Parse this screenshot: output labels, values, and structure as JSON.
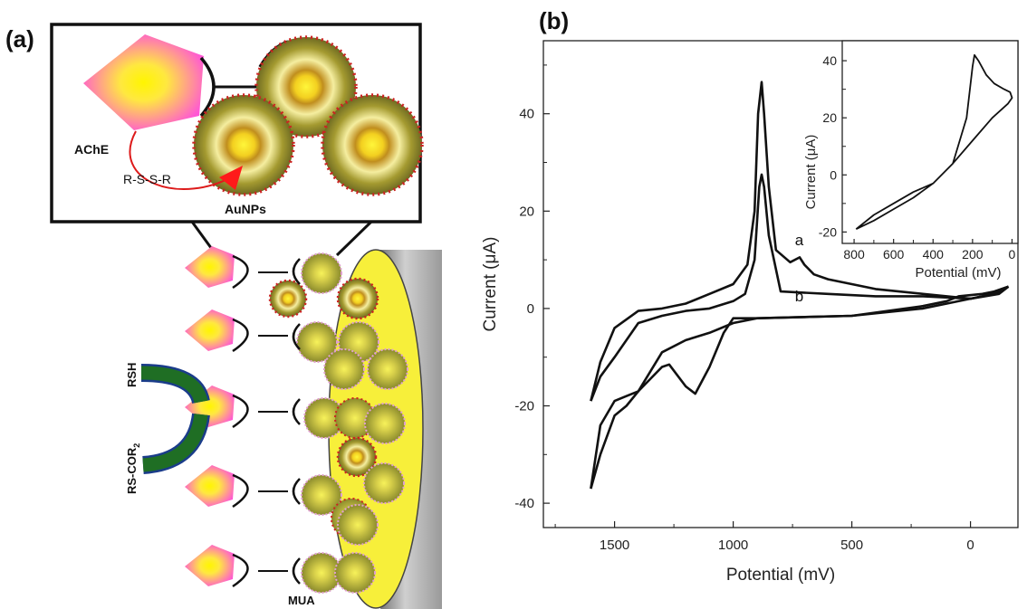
{
  "panels": {
    "a": "(a)",
    "b": "(b)"
  },
  "diagram": {
    "ache": "AChE",
    "rssr": "R-S-S-R",
    "aunps": "AuNPs",
    "rsh": "RSH",
    "rscor_main": "RS-COR",
    "rscor_sub": "2",
    "mua": "MUA"
  },
  "colors": {
    "enzyme": "#ff55d6",
    "core": "#fff200",
    "particle": "#b8ad3a",
    "dots": "#cc2222",
    "arrow": "#ff1a1a",
    "tube": "#1f6e24",
    "electrode": "#f7ef3a"
  },
  "chart_data": [
    {
      "type": "line",
      "title": "",
      "xlabel": "Potential  (mV)",
      "ylabel": "Current  (μA)",
      "xlim": [
        1800,
        -200
      ],
      "ylim": [
        -45,
        55
      ],
      "xticks": [
        1500,
        1000,
        500,
        0
      ],
      "yticks": [
        40,
        20,
        0,
        -20,
        -40
      ],
      "curve_labels": [
        "a",
        "b"
      ],
      "series": [
        {
          "name": "a",
          "forward": [
            [
              1600,
              -37
            ],
            [
              1560,
              -24
            ],
            [
              1500,
              -19
            ],
            [
              1450,
              -18
            ],
            [
              1400,
              -17
            ],
            [
              1300,
              -12
            ],
            [
              1270,
              -11.5
            ],
            [
              1200,
              -16
            ],
            [
              1160,
              -17.5
            ],
            [
              1100,
              -12
            ],
            [
              1040,
              -5
            ],
            [
              1000,
              -2
            ],
            [
              900,
              -2
            ],
            [
              500,
              -1.5
            ],
            [
              200,
              0.5
            ],
            [
              100,
              1.5
            ],
            [
              50,
              2.5
            ],
            [
              -50,
              3
            ],
            [
              -100,
              3.5
            ],
            [
              -160,
              4.5
            ]
          ],
          "reverse": [
            [
              -160,
              4.5
            ],
            [
              -120,
              3
            ],
            [
              0,
              2
            ],
            [
              200,
              3
            ],
            [
              400,
              4
            ],
            [
              500,
              5
            ],
            [
              600,
              6
            ],
            [
              660,
              7
            ],
            [
              700,
              9
            ],
            [
              720,
              10.5
            ],
            [
              760,
              9.5
            ],
            [
              820,
              12
            ],
            [
              850,
              25
            ],
            [
              870,
              40
            ],
            [
              880,
              46.5
            ],
            [
              895,
              40
            ],
            [
              910,
              20
            ],
            [
              940,
              9
            ],
            [
              1000,
              5
            ],
            [
              1100,
              3
            ],
            [
              1200,
              1
            ],
            [
              1300,
              0
            ],
            [
              1400,
              -0.5
            ],
            [
              1500,
              -4
            ],
            [
              1560,
              -11
            ],
            [
              1600,
              -19
            ]
          ]
        },
        {
          "name": "b",
          "forward": [
            [
              1600,
              -37
            ],
            [
              1560,
              -30
            ],
            [
              1500,
              -22
            ],
            [
              1450,
              -20
            ],
            [
              1400,
              -17
            ],
            [
              1300,
              -9
            ],
            [
              1200,
              -6.5
            ],
            [
              1100,
              -5
            ],
            [
              1000,
              -3
            ],
            [
              900,
              -2
            ],
            [
              500,
              -1.5
            ],
            [
              200,
              0
            ],
            [
              100,
              1
            ],
            [
              -50,
              2.5
            ],
            [
              -160,
              4.5
            ]
          ],
          "reverse": [
            [
              -160,
              4.5
            ],
            [
              -100,
              3
            ],
            [
              0,
              2
            ],
            [
              200,
              2.5
            ],
            [
              400,
              2.5
            ],
            [
              600,
              3
            ],
            [
              800,
              3.5
            ],
            [
              850,
              15
            ],
            [
              870,
              25
            ],
            [
              880,
              27.5
            ],
            [
              890,
              25
            ],
            [
              910,
              10
            ],
            [
              950,
              3
            ],
            [
              1000,
              1.5
            ],
            [
              1100,
              0
            ],
            [
              1200,
              -0.5
            ],
            [
              1300,
              -1.5
            ],
            [
              1400,
              -3
            ],
            [
              1500,
              -10
            ],
            [
              1560,
              -14
            ],
            [
              1600,
              -19
            ]
          ]
        }
      ]
    },
    {
      "type": "line",
      "title": "",
      "xlabel": "Potential  (mV)",
      "ylabel": "Current (μA)",
      "xlim": [
        860,
        -30
      ],
      "ylim": [
        -24,
        47
      ],
      "xticks": [
        800,
        600,
        400,
        200,
        0
      ],
      "yticks": [
        40,
        20,
        0,
        -20
      ],
      "series": [
        {
          "name": "",
          "points": [
            [
              790,
              -19
            ],
            [
              700,
              -14
            ],
            [
              600,
              -10
            ],
            [
              500,
              -6
            ],
            [
              400,
              -3
            ],
            [
              300,
              4
            ],
            [
              230,
              20
            ],
            [
              200,
              38
            ],
            [
              190,
              42
            ],
            [
              170,
              40
            ],
            [
              130,
              35
            ],
            [
              90,
              32
            ],
            [
              40,
              30
            ],
            [
              10,
              29
            ],
            [
              0,
              27
            ],
            [
              20,
              25
            ],
            [
              100,
              20
            ],
            [
              200,
              12
            ],
            [
              300,
              4
            ],
            [
              400,
              -3
            ],
            [
              500,
              -8
            ],
            [
              600,
              -12
            ],
            [
              700,
              -16
            ],
            [
              790,
              -19
            ]
          ]
        }
      ]
    }
  ]
}
